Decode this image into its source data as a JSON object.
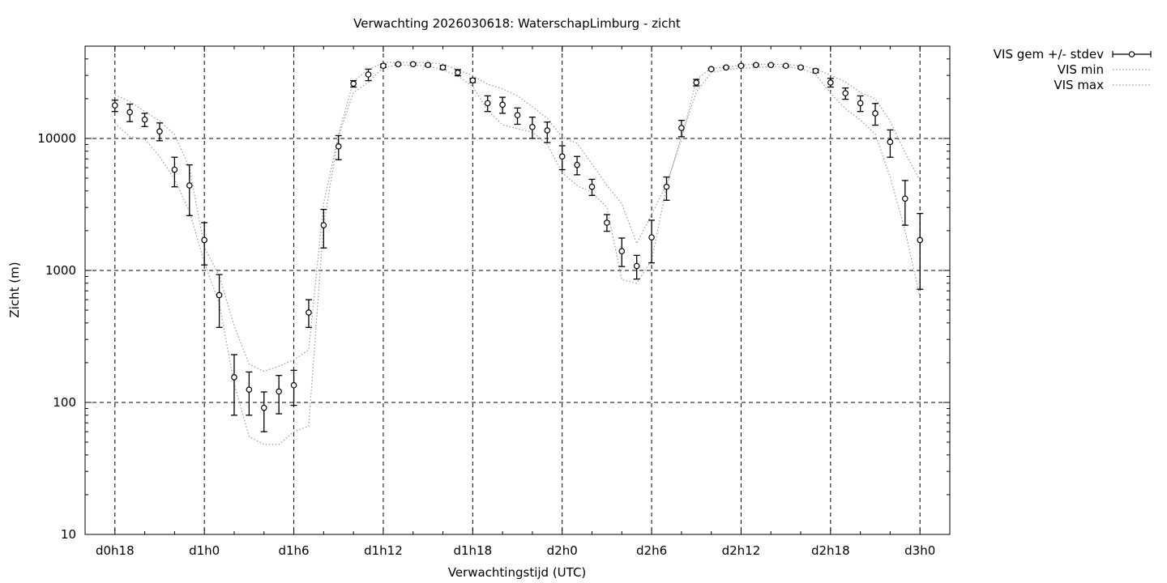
{
  "chart_data": {
    "type": "scatter",
    "title": "Verwachting 2026030618: WaterschapLimburg - zicht",
    "xlabel": "Verwachtingstijd (UTC)",
    "ylabel": "Zicht (m)",
    "y_scale": "log",
    "ylim": [
      10,
      50000
    ],
    "xlim": [
      -2,
      56
    ],
    "grid": true,
    "legend_position": "top-right outside",
    "x_tick_values": [
      0,
      6,
      12,
      18,
      24,
      30,
      36,
      42,
      48,
      54
    ],
    "x_tick_labels": [
      "d0h18",
      "d1h0",
      "d1h6",
      "d1h12",
      "d1h18",
      "d2h0",
      "d2h6",
      "d2h12",
      "d2h18",
      "d3h0"
    ],
    "y_tick_values": [
      10,
      100,
      1000,
      10000
    ],
    "y_tick_labels": [
      "10",
      "100",
      "1000",
      "10000"
    ],
    "x": [
      0,
      1,
      2,
      3,
      4,
      5,
      6,
      7,
      8,
      9,
      10,
      11,
      12,
      13,
      14,
      15,
      16,
      17,
      18,
      19,
      20,
      21,
      22,
      23,
      24,
      25,
      26,
      27,
      28,
      29,
      30,
      31,
      32,
      33,
      34,
      35,
      36,
      37,
      38,
      39,
      40,
      41,
      42,
      43,
      44,
      45,
      46,
      47,
      48,
      49,
      50,
      51,
      52,
      53,
      54
    ],
    "series": [
      {
        "name": "VIS gem +/- stdev",
        "style": "points-errorbars",
        "color": "#000000",
        "mean": [
          17800,
          15800,
          13900,
          11300,
          5800,
          4400,
          1700,
          650,
          155,
          125,
          91,
          121,
          135,
          480,
          2200,
          8700,
          26000,
          30500,
          35500,
          36500,
          36500,
          36000,
          34500,
          31500,
          27500,
          18500,
          18000,
          15000,
          12200,
          11500,
          7300,
          6300,
          4300,
          2300,
          1400,
          1080,
          1780,
          4300,
          12000,
          26500,
          33500,
          34500,
          35500,
          36000,
          36000,
          35500,
          34500,
          32500,
          26500,
          22000,
          18500,
          15500,
          9400,
          3500,
          1700
        ],
        "low": [
          16000,
          13400,
          12300,
          9600,
          4300,
          2600,
          1100,
          370,
          80,
          80,
          60,
          82,
          95,
          370,
          1480,
          6900,
          24500,
          27400,
          34500,
          36000,
          36000,
          35300,
          33300,
          29800,
          26500,
          16000,
          15500,
          12800,
          10000,
          9300,
          5800,
          5300,
          3700,
          1980,
          1070,
          860,
          1140,
          3400,
          10300,
          25000,
          33000,
          34000,
          35000,
          35500,
          35500,
          35000,
          33800,
          31500,
          24500,
          19800,
          16000,
          12600,
          7200,
          2200,
          720
        ],
        "high": [
          19500,
          18200,
          15500,
          13100,
          7200,
          6300,
          2300,
          930,
          230,
          170,
          120,
          160,
          175,
          600,
          2900,
          10500,
          27400,
          33500,
          36500,
          37000,
          37000,
          36700,
          35700,
          33200,
          28500,
          21000,
          20500,
          17000,
          14500,
          13300,
          8800,
          7300,
          4900,
          2650,
          1760,
          1300,
          2400,
          5100,
          13700,
          28000,
          34000,
          35000,
          36000,
          36500,
          36500,
          36000,
          35200,
          33500,
          28500,
          24100,
          21000,
          18400,
          11600,
          4800,
          2700
        ]
      },
      {
        "name": "VIS min",
        "style": "dotted-line",
        "color": "#999999",
        "values": [
          13000,
          10300,
          9900,
          7300,
          4900,
          2800,
          1150,
          560,
          138,
          55,
          48,
          48,
          60,
          66,
          2230,
          10400,
          22300,
          26600,
          34500,
          36000,
          36000,
          35300,
          33200,
          29700,
          24800,
          16300,
          12700,
          11800,
          11200,
          9000,
          5500,
          4400,
          3900,
          3000,
          850,
          800,
          1200,
          4300,
          10500,
          22500,
          31500,
          33200,
          34000,
          34500,
          35000,
          35000,
          33800,
          30700,
          22000,
          16800,
          13800,
          10800,
          5100,
          2000,
          630
        ]
      },
      {
        "name": "VIS max",
        "style": "dotted-line",
        "color": "#999999",
        "values": [
          21400,
          19000,
          16000,
          13600,
          10700,
          6000,
          1500,
          910,
          380,
          195,
          172,
          188,
          210,
          250,
          3200,
          10700,
          27100,
          33200,
          37500,
          37700,
          37700,
          37500,
          36700,
          33000,
          30000,
          25700,
          23800,
          21000,
          17400,
          14200,
          10200,
          9200,
          6400,
          4400,
          3200,
          1600,
          2660,
          4500,
          9800,
          28000,
          34000,
          34700,
          36000,
          36500,
          36500,
          36400,
          35500,
          33600,
          30200,
          26800,
          22300,
          20000,
          13500,
          7800,
          4800
        ]
      }
    ]
  }
}
